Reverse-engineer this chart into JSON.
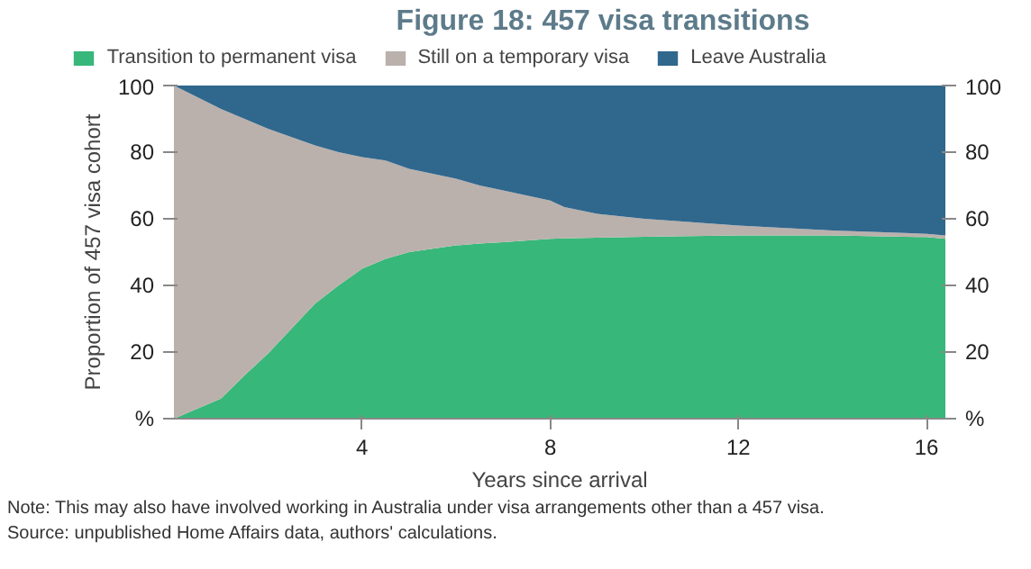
{
  "chart_data": {
    "type": "area",
    "stacked": true,
    "title": "Figure 18: 457 visa transitions",
    "xlabel": "Years since arrival",
    "ylabel": "Proportion of 457 visa cohort",
    "annotations": [
      "Note: This may also have involved working in Australia under visa arrangements other than a 457 visa.",
      "Source: unpublished Home Affairs data, authors' calculations."
    ],
    "x": [
      0,
      1,
      1.5,
      2,
      2.5,
      3,
      3.5,
      4,
      4.5,
      5,
      6,
      6.5,
      7,
      8,
      8.3,
      9,
      10,
      11,
      12,
      14,
      16,
      16.4
    ],
    "series": [
      {
        "name": "Transition to permanent visa",
        "color": "#37b779",
        "values": [
          0,
          6,
          13,
          19.5,
          27,
          34.5,
          40,
          45,
          48,
          50,
          52,
          52.6,
          53,
          54,
          54.1,
          54.3,
          54.6,
          54.8,
          55,
          55,
          54.5,
          54
        ]
      },
      {
        "name": "Still on a temporary visa",
        "color": "#bab1ac",
        "values": [
          100,
          87,
          77,
          67.5,
          57.5,
          47.5,
          40,
          33.5,
          29.5,
          25,
          20,
          17.4,
          15.5,
          11.5,
          9.4,
          7.2,
          5.4,
          4.2,
          3,
          1.5,
          1,
          1
        ]
      },
      {
        "name": "Leave Australia",
        "color": "#30678d",
        "values": [
          0,
          7,
          10,
          13,
          15.5,
          18,
          20,
          21.5,
          22.5,
          25,
          28,
          30,
          31.5,
          34.5,
          36.5,
          38.5,
          40,
          41,
          42,
          43.5,
          44.5,
          45
        ]
      }
    ],
    "xlim": [
      0,
      16.4
    ],
    "xticks": [
      4,
      8,
      12,
      16
    ],
    "ylim": [
      0,
      100
    ],
    "yticks": [
      {
        "value": 0,
        "label": "%"
      },
      20,
      40,
      60,
      80,
      100
    ],
    "y2lim": [
      0,
      100
    ],
    "y2ticks": [
      {
        "value": 0,
        "label": "%"
      },
      20,
      40,
      60,
      80,
      100
    ],
    "grid": false,
    "legend": "top"
  }
}
